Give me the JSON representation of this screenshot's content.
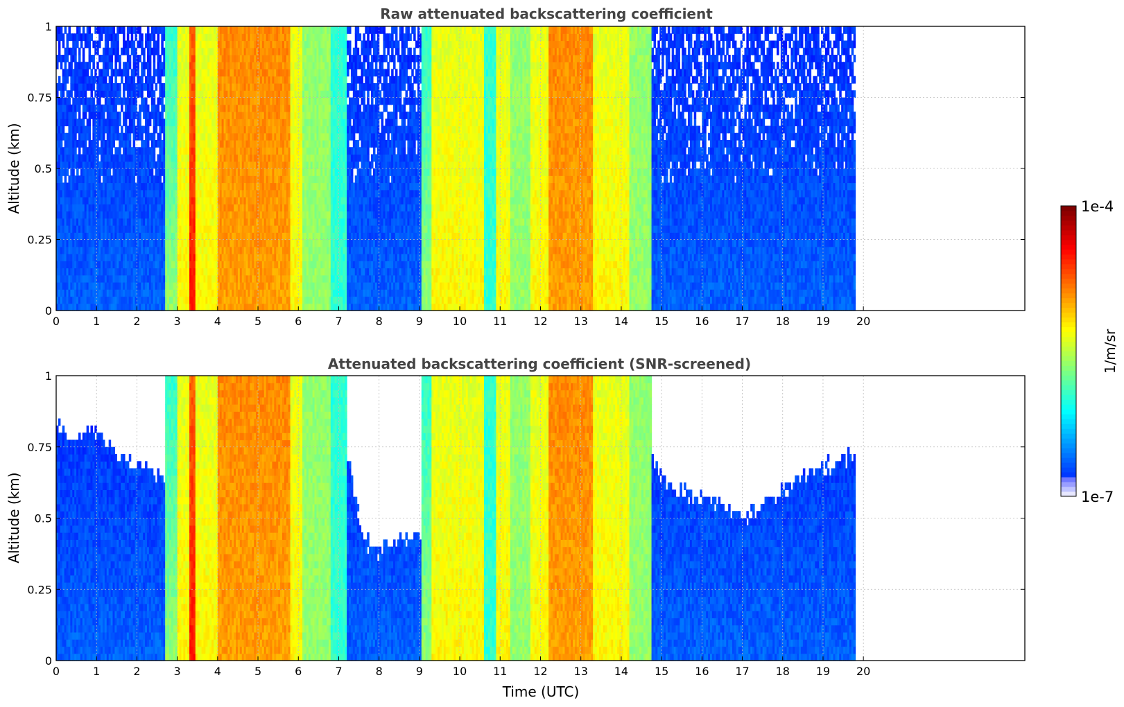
{
  "chart_data": [
    {
      "type": "heatmap",
      "title": "Raw attenuated backscattering coefficient",
      "xlabel": "",
      "ylabel": "Altitude (km)",
      "xlim": [
        0,
        24
      ],
      "ylim": [
        0,
        1
      ],
      "x_ticks": [
        "0",
        "1",
        "2",
        "3",
        "4",
        "5",
        "6",
        "7",
        "8",
        "9",
        "10",
        "11",
        "12",
        "13",
        "14",
        "15",
        "16",
        "17",
        "18",
        "19",
        "20"
      ],
      "y_ticks": [
        "0",
        "0.25",
        "0.5",
        "0.75",
        "1"
      ],
      "data_end_time": 19.8,
      "grid": true,
      "screened": false,
      "segments": [
        {
          "start": 0.0,
          "end": 2.7,
          "profile": "clear"
        },
        {
          "start": 2.7,
          "end": 3.0,
          "profile": "ramp-up"
        },
        {
          "start": 3.0,
          "end": 3.3,
          "profile": "yellow"
        },
        {
          "start": 3.3,
          "end": 3.45,
          "profile": "red-core"
        },
        {
          "start": 3.45,
          "end": 4.0,
          "profile": "yellow"
        },
        {
          "start": 4.0,
          "end": 5.8,
          "profile": "orange"
        },
        {
          "start": 5.8,
          "end": 6.1,
          "profile": "yellow"
        },
        {
          "start": 6.1,
          "end": 6.8,
          "profile": "green"
        },
        {
          "start": 6.8,
          "end": 7.2,
          "profile": "cyan"
        },
        {
          "start": 7.2,
          "end": 9.05,
          "profile": "clear"
        },
        {
          "start": 9.05,
          "end": 9.3,
          "profile": "ramp-up"
        },
        {
          "start": 9.3,
          "end": 10.6,
          "profile": "yellow"
        },
        {
          "start": 10.6,
          "end": 10.9,
          "profile": "cyan"
        },
        {
          "start": 10.9,
          "end": 11.25,
          "profile": "yellow"
        },
        {
          "start": 11.25,
          "end": 11.75,
          "profile": "green"
        },
        {
          "start": 11.75,
          "end": 12.2,
          "profile": "yellow"
        },
        {
          "start": 12.2,
          "end": 13.3,
          "profile": "orange"
        },
        {
          "start": 13.3,
          "end": 14.2,
          "profile": "yellow"
        },
        {
          "start": 14.2,
          "end": 14.75,
          "profile": "green"
        },
        {
          "start": 14.75,
          "end": 19.8,
          "profile": "clear"
        }
      ]
    },
    {
      "type": "heatmap",
      "title": "Attenuated backscattering coefficient (SNR-screened)",
      "xlabel": "Time (UTC)",
      "ylabel": "Altitude (km)",
      "xlim": [
        0,
        24
      ],
      "ylim": [
        0,
        1
      ],
      "x_ticks": [
        "0",
        "1",
        "2",
        "3",
        "4",
        "5",
        "6",
        "7",
        "8",
        "9",
        "10",
        "11",
        "12",
        "13",
        "14",
        "15",
        "16",
        "17",
        "18",
        "19",
        "20"
      ],
      "y_ticks": [
        "0",
        "0.25",
        "0.5",
        "0.75",
        "1"
      ],
      "data_end_time": 19.8,
      "grid": true,
      "screened": true,
      "screen_threshold": [
        {
          "t": 0.0,
          "alt": 0.82
        },
        {
          "t": 0.5,
          "alt": 0.78
        },
        {
          "t": 1.0,
          "alt": 0.82
        },
        {
          "t": 1.5,
          "alt": 0.72
        },
        {
          "t": 2.0,
          "alt": 0.68
        },
        {
          "t": 2.7,
          "alt": 0.64
        },
        {
          "t": 7.2,
          "alt": 0.7
        },
        {
          "t": 7.6,
          "alt": 0.42
        },
        {
          "t": 8.0,
          "alt": 0.38
        },
        {
          "t": 8.5,
          "alt": 0.42
        },
        {
          "t": 9.05,
          "alt": 0.45
        },
        {
          "t": 14.75,
          "alt": 0.7
        },
        {
          "t": 15.2,
          "alt": 0.6
        },
        {
          "t": 15.8,
          "alt": 0.58
        },
        {
          "t": 16.5,
          "alt": 0.55
        },
        {
          "t": 17.0,
          "alt": 0.5
        },
        {
          "t": 17.5,
          "alt": 0.55
        },
        {
          "t": 18.0,
          "alt": 0.6
        },
        {
          "t": 18.5,
          "alt": 0.66
        },
        {
          "t": 19.0,
          "alt": 0.68
        },
        {
          "t": 19.8,
          "alt": 0.72
        }
      ],
      "segments": [
        {
          "start": 0.0,
          "end": 2.7,
          "profile": "clear"
        },
        {
          "start": 2.7,
          "end": 3.0,
          "profile": "ramp-up"
        },
        {
          "start": 3.0,
          "end": 3.3,
          "profile": "yellow"
        },
        {
          "start": 3.3,
          "end": 3.45,
          "profile": "red-core"
        },
        {
          "start": 3.45,
          "end": 4.0,
          "profile": "yellow"
        },
        {
          "start": 4.0,
          "end": 5.8,
          "profile": "orange"
        },
        {
          "start": 5.8,
          "end": 6.1,
          "profile": "yellow"
        },
        {
          "start": 6.1,
          "end": 6.8,
          "profile": "green"
        },
        {
          "start": 6.8,
          "end": 7.2,
          "profile": "cyan"
        },
        {
          "start": 7.2,
          "end": 9.05,
          "profile": "clear"
        },
        {
          "start": 9.05,
          "end": 9.3,
          "profile": "ramp-up"
        },
        {
          "start": 9.3,
          "end": 10.6,
          "profile": "yellow"
        },
        {
          "start": 10.6,
          "end": 10.9,
          "profile": "cyan"
        },
        {
          "start": 10.9,
          "end": 11.25,
          "profile": "yellow"
        },
        {
          "start": 11.25,
          "end": 11.75,
          "profile": "green"
        },
        {
          "start": 11.75,
          "end": 12.2,
          "profile": "yellow"
        },
        {
          "start": 12.2,
          "end": 13.3,
          "profile": "orange"
        },
        {
          "start": 13.3,
          "end": 14.2,
          "profile": "yellow"
        },
        {
          "start": 14.2,
          "end": 14.75,
          "profile": "green"
        },
        {
          "start": 14.75,
          "end": 19.8,
          "profile": "clear"
        }
      ]
    }
  ],
  "colorbar": {
    "label": "1/m/sr",
    "min_label": "1e-7",
    "max_label": "1e-4",
    "scale": "log",
    "min": 1e-07,
    "max": 0.0001,
    "colormap": "jet"
  }
}
